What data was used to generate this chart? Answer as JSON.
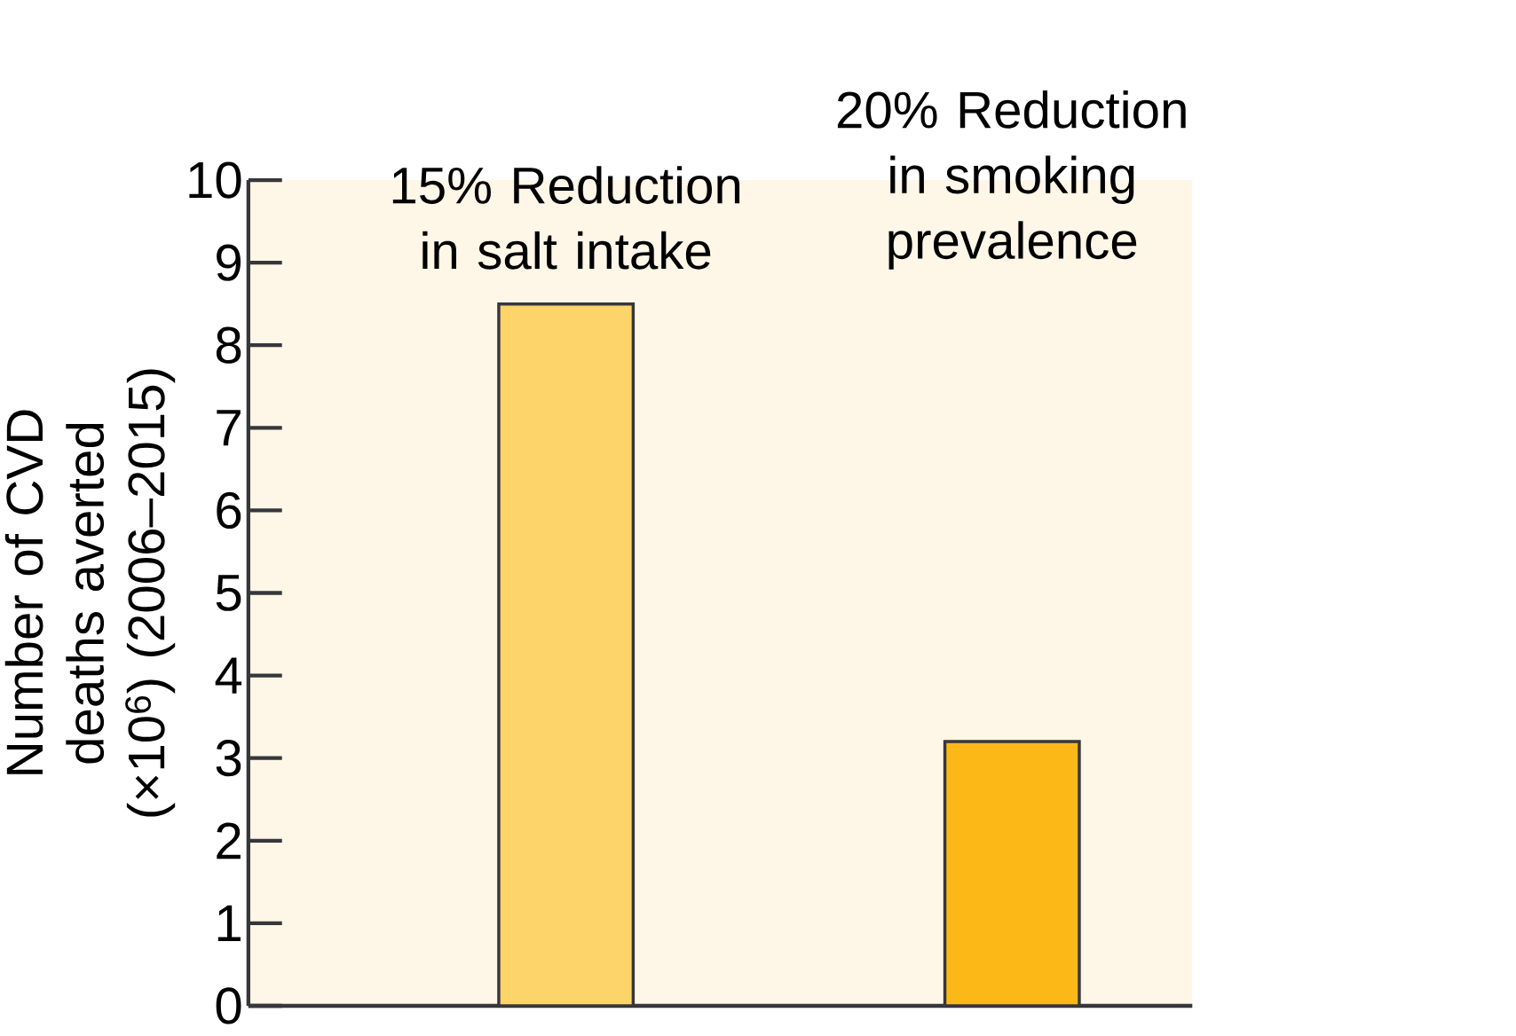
{
  "chart_data": {
    "type": "bar",
    "categories": [
      "15% Reduction in salt intake",
      "20% Reduction in smoking prevalence"
    ],
    "values": [
      8.5,
      3.2
    ],
    "colors": [
      "#fcd46a",
      "#fbb817"
    ],
    "ylabel": "Number of CVD deaths averted (×10$^{6}$) (2006–2015)",
    "ylim": [
      0,
      10
    ],
    "yticks": [
      0,
      1,
      2,
      3,
      4,
      5,
      6,
      7,
      8,
      9,
      10
    ],
    "grid": false
  }
}
